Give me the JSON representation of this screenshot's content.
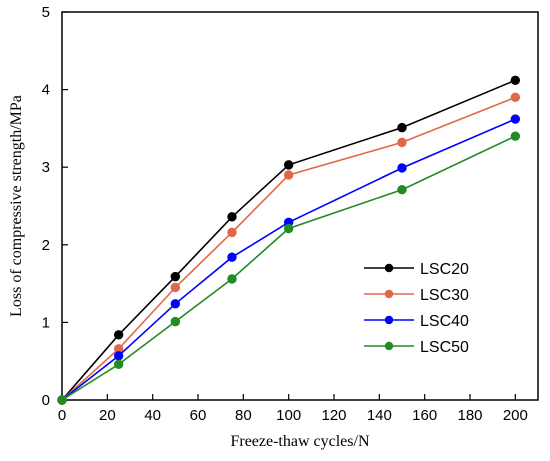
{
  "chart_data": {
    "type": "line",
    "xlabel": "Freeze-thaw cycles/N",
    "ylabel": "Loss of compressive strength/MPa",
    "xlim": [
      0,
      210
    ],
    "ylim": [
      0,
      5
    ],
    "xticks": [
      0,
      20,
      40,
      60,
      80,
      100,
      120,
      140,
      160,
      180,
      200
    ],
    "yticks": [
      0,
      1,
      2,
      3,
      4,
      5
    ],
    "x": [
      0,
      25,
      50,
      75,
      100,
      150,
      200
    ],
    "grid": false,
    "legend_position": "lower-right",
    "series": [
      {
        "name": "LSC20",
        "color": "#000000",
        "values": [
          0,
          0.84,
          1.59,
          2.36,
          3.03,
          3.51,
          4.12
        ]
      },
      {
        "name": "LSC30",
        "color": "#e06848",
        "values": [
          0,
          0.66,
          1.45,
          2.16,
          2.9,
          3.32,
          3.9
        ]
      },
      {
        "name": "LSC40",
        "color": "#0000ff",
        "values": [
          0,
          0.57,
          1.24,
          1.84,
          2.29,
          2.99,
          3.62
        ]
      },
      {
        "name": "LSC50",
        "color": "#228b22",
        "values": [
          0,
          0.46,
          1.01,
          1.56,
          2.21,
          2.71,
          3.4
        ]
      }
    ]
  }
}
